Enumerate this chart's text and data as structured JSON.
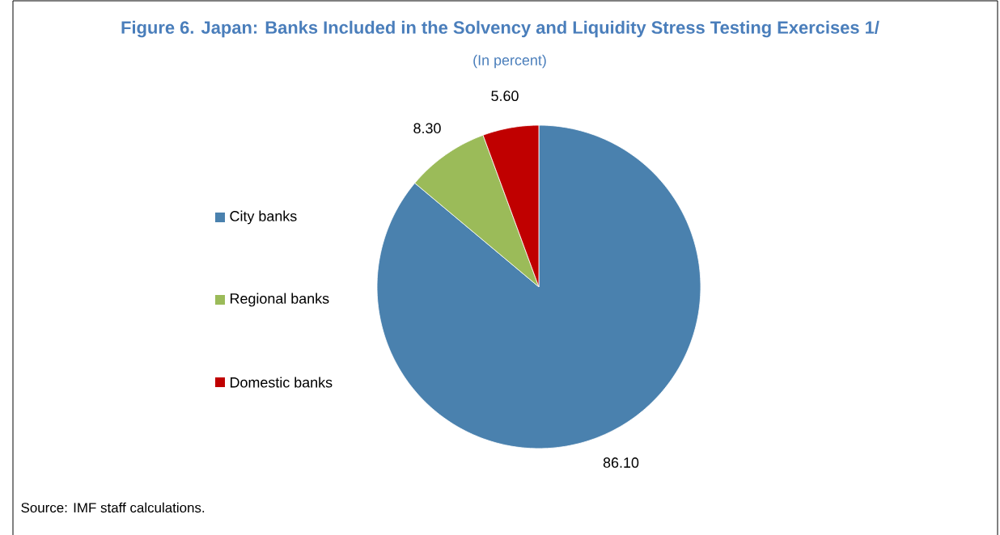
{
  "chart_data": {
    "type": "pie",
    "title": "Figure 6. Japan: Banks Included in the Solvency and Liquidity Stress Testing Exercises 1/",
    "subtitle": "(In percent)",
    "categories": [
      "City banks",
      "Regional banks",
      "Domestic banks"
    ],
    "values": [
      86.1,
      8.3,
      5.6
    ],
    "colors": [
      "#4a81ae",
      "#9bbb59",
      "#c00000"
    ],
    "value_labels": [
      "86.10",
      "8.30",
      "5.60"
    ],
    "legend": "left",
    "annotations": [
      "Source: IMF staff calculations."
    ]
  }
}
